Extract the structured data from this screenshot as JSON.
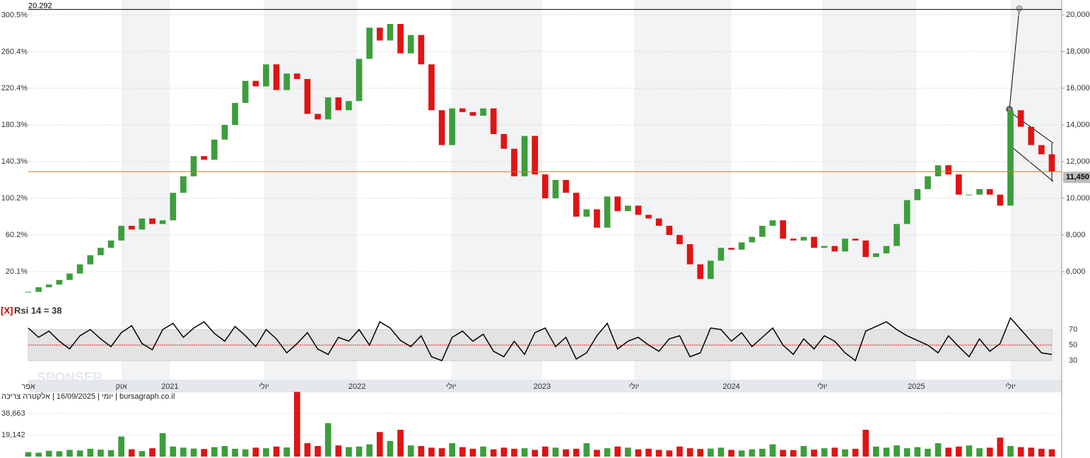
{
  "chart_data": [
    {
      "type": "candlestick",
      "values": [
        4900,
        5150,
        5300,
        5550,
        5900,
        6400,
        6900,
        7300,
        7700,
        8500,
        8300,
        8900,
        8600,
        8800,
        10300,
        11200,
        12300,
        12100,
        13200,
        14000,
        15200,
        16400,
        16100,
        17300,
        15900,
        16800,
        16500,
        14600,
        14300,
        15500,
        14800,
        15300,
        17600,
        19300,
        18600,
        19500,
        17900,
        18900,
        17300,
        14800,
        12900,
        14900,
        14700,
        14500,
        14900,
        13500,
        12700,
        11200,
        13400,
        11300,
        10000,
        11000,
        10300,
        9000,
        9400,
        8400,
        10100,
        9300,
        9600,
        9100,
        8900,
        8500,
        8000,
        7500,
        6400,
        5600,
        6600,
        7300,
        7200,
        7600,
        7900,
        8500,
        8800,
        7800,
        7700,
        7900,
        7300,
        7400,
        7100,
        7800,
        7700,
        6800,
        7000,
        7400,
        8600,
        9900,
        10500,
        11200,
        11800,
        11300,
        10200,
        10200,
        10500,
        10200,
        9600,
        14800,
        13900,
        12900,
        12400,
        11450
      ],
      "xlim": [
        0,
        99
      ],
      "xticks": [
        {
          "value": 0,
          "label": "אפר"
        },
        {
          "value": 9,
          "label": "אוק"
        },
        {
          "value": 13.7,
          "label": "2021"
        },
        {
          "value": 22.8,
          "label": "יולי"
        },
        {
          "value": 31.8,
          "label": "2022"
        },
        {
          "value": 40.9,
          "label": "יולי"
        },
        {
          "value": 49.7,
          "label": "2023"
        },
        {
          "value": 58.6,
          "label": "יולי"
        },
        {
          "value": 68,
          "label": "2024"
        },
        {
          "value": 76.8,
          "label": "יולי"
        },
        {
          "value": 85.9,
          "label": "2025"
        },
        {
          "value": 95,
          "label": "יולי"
        }
      ],
      "ylim": [
        4269,
        20808
      ],
      "yticks": [
        {
          "value": 6000,
          "label": "6,000"
        },
        {
          "value": 8000,
          "label": "8,000"
        },
        {
          "value": 10000,
          "label": "10,000"
        },
        {
          "value": 12000,
          "label": "12,000"
        },
        {
          "value": 14000,
          "label": "14,000"
        },
        {
          "value": 16000,
          "label": "16,000"
        },
        {
          "value": 18000,
          "label": "18,000"
        },
        {
          "value": 20000,
          "label": "20,000"
        }
      ],
      "y2lim": [
        -14.6,
        317
      ],
      "y2ticks": [
        {
          "value": 20.1,
          "label": "20.1%"
        },
        {
          "value": 60.2,
          "label": "60.2%"
        },
        {
          "value": 100.2,
          "label": "100.2%"
        },
        {
          "value": 140.3,
          "label": "140.3%"
        },
        {
          "value": 180.3,
          "label": "180.3%"
        },
        {
          "value": 220.4,
          "label": "220.4%"
        },
        {
          "value": 260.4,
          "label": "260.4%"
        },
        {
          "value": 300.5,
          "label": "300.5%"
        }
      ],
      "hlines": [
        {
          "value": 20292,
          "label": "20.292",
          "color": "#000000"
        },
        {
          "value": 11450,
          "label": "11,450",
          "color": "#d07a1a"
        }
      ],
      "up_color": "#3c9e3c",
      "down_color": "#e01414",
      "grid": true
    },
    {
      "type": "line",
      "close_button": "[X]",
      "title": "Rsi 14 = 38",
      "watermark": "SPONSER",
      "values": [
        72,
        60,
        68,
        55,
        45,
        62,
        70,
        58,
        48,
        66,
        75,
        52,
        44,
        70,
        78,
        60,
        72,
        80,
        65,
        55,
        74,
        62,
        48,
        70,
        58,
        40,
        52,
        66,
        45,
        38,
        60,
        55,
        70,
        50,
        80,
        72,
        56,
        48,
        62,
        35,
        30,
        60,
        68,
        55,
        64,
        42,
        35,
        55,
        38,
        66,
        72,
        48,
        60,
        32,
        40,
        62,
        78,
        45,
        55,
        60,
        50,
        42,
        58,
        62,
        35,
        40,
        72,
        70,
        55,
        66,
        48,
        60,
        72,
        50,
        38,
        58,
        45,
        62,
        55,
        40,
        30,
        68,
        74,
        80,
        70,
        62,
        56,
        50,
        40,
        62,
        48,
        35,
        58,
        42,
        52,
        85,
        70,
        55,
        40,
        38
      ],
      "color": "#000000",
      "ylim": [
        5.5,
        88.2
      ],
      "yticks": [
        30,
        50,
        70
      ],
      "band": [
        30,
        70
      ],
      "midline": 50,
      "midline_color": "#e02020"
    },
    {
      "type": "bar",
      "title": "יומי | 16/09/2025 | אלקטרה צריכה | bursagraph.co.il",
      "values": [
        4000,
        3500,
        5200,
        4800,
        6000,
        5500,
        7000,
        6200,
        5800,
        18000,
        6500,
        5000,
        7500,
        21000,
        9000,
        8000,
        7200,
        6800,
        8500,
        9500,
        7000,
        6500,
        8000,
        7500,
        9000,
        8200,
        58000,
        12000,
        9500,
        30000,
        10000,
        8500,
        9000,
        11000,
        22000,
        14000,
        24000,
        10000,
        9500,
        8000,
        7500,
        12000,
        8500,
        7000,
        9000,
        6500,
        8000,
        7000,
        7500,
        6000,
        9000,
        8000,
        6500,
        7000,
        12000,
        6000,
        7500,
        9000,
        8000,
        6500,
        7000,
        6000,
        5500,
        9000,
        7500,
        6800,
        7200,
        8000,
        6000,
        5500,
        6500,
        7000,
        11000,
        6000,
        5800,
        9500,
        6200,
        7500,
        8000,
        6500,
        7000,
        24000,
        9000,
        8000,
        10000,
        7500,
        8500,
        7000,
        12000,
        8000,
        9000,
        10000,
        7500,
        8000,
        17000,
        9500,
        8500,
        8000,
        7000,
        6500
      ],
      "ylim": [
        0,
        58200
      ],
      "yticks": [
        {
          "value": 19142,
          "label": "19,142"
        },
        {
          "value": 38663,
          "label": "38,663"
        }
      ]
    }
  ]
}
